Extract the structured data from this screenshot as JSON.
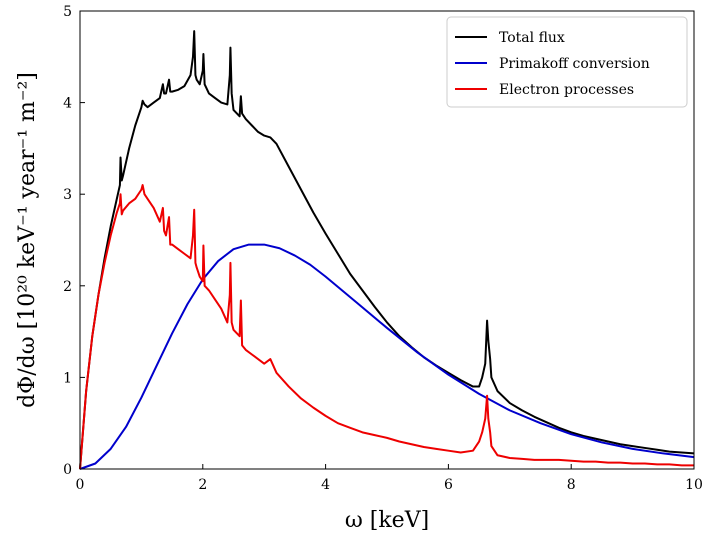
{
  "chart_data": {
    "type": "line",
    "xlabel": "ω  [keV]",
    "ylabel": "dΦ/dω  [10²⁰ keV⁻¹ year⁻¹ m⁻²]",
    "xlim": [
      0,
      10
    ],
    "ylim": [
      0,
      5
    ],
    "x_ticks": [
      0,
      2,
      4,
      6,
      8,
      10
    ],
    "y_ticks": [
      0,
      1,
      2,
      3,
      4,
      5
    ],
    "grid": false,
    "legend_position": "top-right",
    "series": [
      {
        "name": "Total flux",
        "color": "#000000",
        "x": [
          0,
          0.1,
          0.2,
          0.3,
          0.4,
          0.5,
          0.6,
          0.65,
          0.66,
          0.68,
          0.7,
          0.8,
          0.9,
          1.0,
          1.02,
          1.05,
          1.1,
          1.2,
          1.3,
          1.35,
          1.37,
          1.4,
          1.45,
          1.47,
          1.5,
          1.6,
          1.7,
          1.8,
          1.84,
          1.86,
          1.88,
          1.9,
          1.95,
          2.0,
          2.01,
          2.03,
          2.1,
          2.2,
          2.3,
          2.4,
          2.44,
          2.45,
          2.47,
          2.5,
          2.6,
          2.62,
          2.64,
          2.7,
          2.8,
          2.9,
          3.0,
          3.1,
          3.2,
          3.4,
          3.6,
          3.8,
          4.0,
          4.2,
          4.4,
          4.6,
          4.8,
          5.0,
          5.2,
          5.4,
          5.6,
          5.8,
          6.0,
          6.2,
          6.4,
          6.5,
          6.55,
          6.6,
          6.63,
          6.65,
          6.68,
          6.7,
          6.8,
          7.0,
          7.2,
          7.4,
          7.6,
          7.8,
          8.0,
          8.2,
          8.4,
          8.6,
          8.8,
          9.0,
          9.2,
          9.4,
          9.6,
          9.8,
          10.0
        ],
        "y": [
          0,
          0.85,
          1.45,
          1.9,
          2.3,
          2.65,
          2.95,
          3.1,
          3.4,
          3.15,
          3.2,
          3.5,
          3.75,
          3.95,
          4.02,
          3.98,
          3.95,
          4.0,
          4.05,
          4.2,
          4.1,
          4.1,
          4.25,
          4.12,
          4.12,
          4.14,
          4.18,
          4.3,
          4.5,
          4.78,
          4.3,
          4.25,
          4.2,
          4.35,
          4.53,
          4.2,
          4.1,
          4.05,
          4.0,
          3.98,
          4.3,
          4.6,
          4.1,
          3.92,
          3.85,
          4.07,
          3.88,
          3.82,
          3.75,
          3.68,
          3.64,
          3.62,
          3.55,
          3.3,
          3.05,
          2.8,
          2.57,
          2.35,
          2.13,
          1.95,
          1.77,
          1.6,
          1.45,
          1.33,
          1.22,
          1.13,
          1.05,
          0.97,
          0.9,
          0.9,
          1.0,
          1.15,
          1.62,
          1.4,
          1.2,
          1.0,
          0.85,
          0.72,
          0.64,
          0.57,
          0.51,
          0.45,
          0.4,
          0.36,
          0.33,
          0.3,
          0.27,
          0.25,
          0.23,
          0.21,
          0.19,
          0.18,
          0.17
        ]
      },
      {
        "name": "Primakoff conversion",
        "color": "#0000cc",
        "x": [
          0,
          0.25,
          0.5,
          0.75,
          1.0,
          1.25,
          1.5,
          1.75,
          2.0,
          2.25,
          2.5,
          2.75,
          3.0,
          3.25,
          3.5,
          3.75,
          4.0,
          4.5,
          5.0,
          5.5,
          6.0,
          6.5,
          7.0,
          7.5,
          8.0,
          8.5,
          9.0,
          9.5,
          10.0
        ],
        "y": [
          0,
          0.06,
          0.22,
          0.46,
          0.78,
          1.13,
          1.48,
          1.8,
          2.07,
          2.27,
          2.4,
          2.45,
          2.45,
          2.41,
          2.33,
          2.23,
          2.1,
          1.82,
          1.54,
          1.27,
          1.03,
          0.82,
          0.64,
          0.5,
          0.38,
          0.29,
          0.22,
          0.17,
          0.13
        ]
      },
      {
        "name": "Electron processes",
        "color": "#ee0000",
        "x": [
          0,
          0.1,
          0.2,
          0.3,
          0.4,
          0.5,
          0.6,
          0.65,
          0.66,
          0.68,
          0.7,
          0.8,
          0.9,
          1.0,
          1.02,
          1.05,
          1.1,
          1.2,
          1.3,
          1.35,
          1.37,
          1.4,
          1.45,
          1.47,
          1.5,
          1.6,
          1.7,
          1.8,
          1.84,
          1.86,
          1.88,
          1.9,
          1.95,
          2.0,
          2.01,
          2.03,
          2.1,
          2.2,
          2.3,
          2.4,
          2.44,
          2.45,
          2.47,
          2.5,
          2.6,
          2.62,
          2.64,
          2.7,
          2.8,
          3.0,
          3.1,
          3.2,
          3.4,
          3.6,
          3.8,
          4.0,
          4.2,
          4.4,
          4.6,
          4.8,
          5.0,
          5.2,
          5.4,
          5.6,
          5.8,
          6.0,
          6.2,
          6.4,
          6.5,
          6.55,
          6.6,
          6.63,
          6.65,
          6.68,
          6.7,
          6.8,
          7.0,
          7.2,
          7.4,
          7.6,
          7.8,
          8.0,
          8.2,
          8.4,
          8.6,
          8.8,
          9.0,
          9.2,
          9.4,
          9.6,
          9.8,
          10.0
        ],
        "y": [
          0,
          0.85,
          1.45,
          1.9,
          2.25,
          2.55,
          2.8,
          2.9,
          3.0,
          2.78,
          2.82,
          2.9,
          2.95,
          3.05,
          3.1,
          3.0,
          2.95,
          2.85,
          2.7,
          2.85,
          2.6,
          2.55,
          2.75,
          2.45,
          2.45,
          2.4,
          2.35,
          2.3,
          2.55,
          2.83,
          2.25,
          2.2,
          2.1,
          2.05,
          2.44,
          2.0,
          1.95,
          1.85,
          1.75,
          1.6,
          1.9,
          2.25,
          1.6,
          1.52,
          1.45,
          1.84,
          1.35,
          1.3,
          1.25,
          1.15,
          1.2,
          1.05,
          0.9,
          0.77,
          0.67,
          0.58,
          0.5,
          0.45,
          0.4,
          0.37,
          0.34,
          0.3,
          0.27,
          0.24,
          0.22,
          0.2,
          0.18,
          0.2,
          0.3,
          0.4,
          0.55,
          0.8,
          0.55,
          0.4,
          0.25,
          0.15,
          0.12,
          0.11,
          0.1,
          0.1,
          0.1,
          0.09,
          0.08,
          0.08,
          0.07,
          0.07,
          0.06,
          0.06,
          0.05,
          0.05,
          0.04,
          0.04
        ]
      }
    ]
  }
}
